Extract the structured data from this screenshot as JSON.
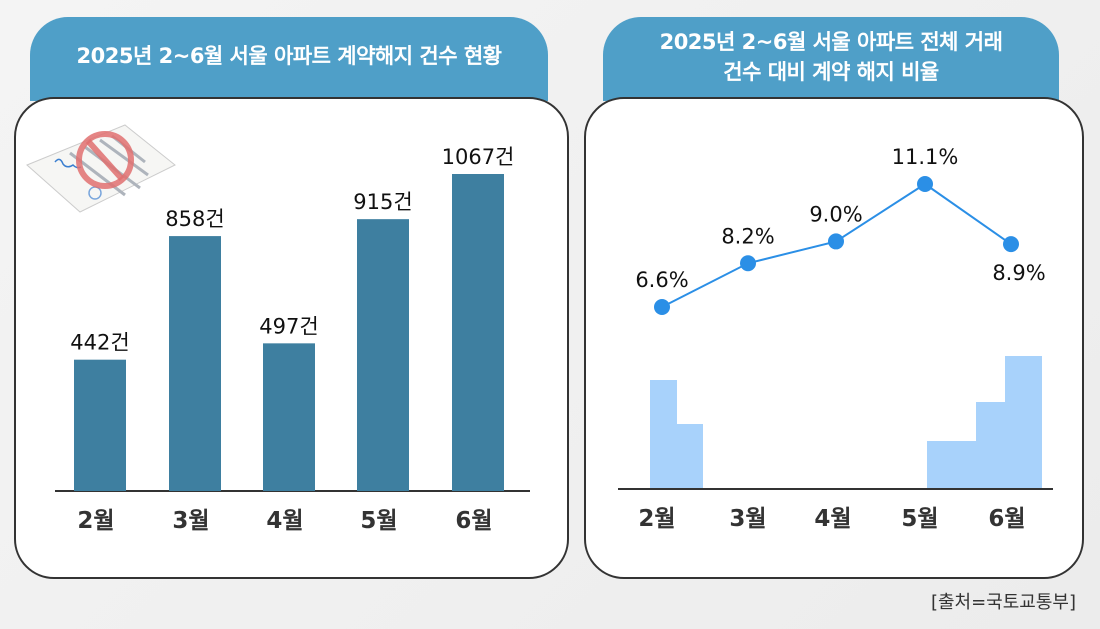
{
  "source": "[출처=국토교통부]",
  "chart_data": [
    {
      "type": "bar",
      "title": "2025년 2~6월 서울 아파트 계약해지 건수 현황",
      "categories": [
        "2월",
        "3월",
        "4월",
        "5월",
        "6월"
      ],
      "values": [
        442,
        858,
        497,
        915,
        1067
      ],
      "data_labels": [
        "442건",
        "858건",
        "497건",
        "915건",
        "1067건"
      ],
      "unit": "건",
      "ylim": [
        0,
        1067
      ],
      "grid": false,
      "color": "#3e7fa0"
    },
    {
      "type": "line",
      "title": "2025년 2~6월 서울 아파트 전체 거래 건수 대비 계약 해지 비율",
      "title_lines": [
        "2025년 2~6월 서울 아파트 전체 거래",
        "건수 대비 계약 해지 비율"
      ],
      "categories": [
        "2월",
        "3월",
        "4월",
        "5월",
        "6월"
      ],
      "values": [
        6.6,
        8.2,
        9.0,
        11.1,
        8.9
      ],
      "data_labels": [
        "6.6%",
        "8.2%",
        "9.0%",
        "11.1%",
        "8.9%"
      ],
      "unit": "%",
      "grid": false,
      "color": "#2b8fe6"
    }
  ],
  "colors": {
    "header": "#4f9fc8",
    "building": "#a8d2fb"
  }
}
